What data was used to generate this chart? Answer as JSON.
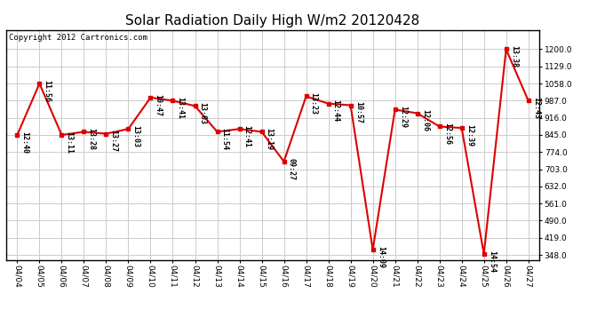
{
  "title": "Solar Radiation Daily High W/m2 20120428",
  "copyright": "Copyright 2012 Cartronics.com",
  "dates": [
    "04/04",
    "04/05",
    "04/06",
    "04/07",
    "04/08",
    "04/09",
    "04/10",
    "04/11",
    "04/12",
    "04/13",
    "04/14",
    "04/15",
    "04/16",
    "04/17",
    "04/18",
    "04/19",
    "04/20",
    "04/21",
    "04/22",
    "04/23",
    "04/24",
    "04/25",
    "04/26",
    "04/27"
  ],
  "values": [
    845,
    1058,
    845,
    858,
    850,
    870,
    1000,
    987,
    965,
    858,
    870,
    858,
    735,
    1005,
    975,
    968,
    370,
    950,
    935,
    880,
    874,
    352,
    1200,
    987
  ],
  "labels": [
    "12:40",
    "11:56",
    "13:11",
    "13:28",
    "13:27",
    "13:03",
    "10:47",
    "13:41",
    "13:03",
    "11:54",
    "12:41",
    "13:19",
    "09:27",
    "13:23",
    "12:44",
    "10:57",
    "14:09",
    "12:29",
    "12:06",
    "12:56",
    "12:39",
    "14:54",
    "13:38",
    "12:43"
  ],
  "line_color": "#dd0000",
  "marker_color": "#dd0000",
  "bg_color": "#ffffff",
  "grid_color": "#cccccc",
  "ylim_min": 348.0,
  "ylim_max": 1200.0,
  "yticks": [
    348.0,
    419.0,
    490.0,
    561.0,
    632.0,
    703.0,
    774.0,
    845.0,
    916.0,
    987.0,
    1058.0,
    1129.0,
    1200.0
  ],
  "title_fontsize": 11,
  "label_fontsize": 6,
  "copyright_fontsize": 6.5,
  "tick_fontsize": 6.5
}
